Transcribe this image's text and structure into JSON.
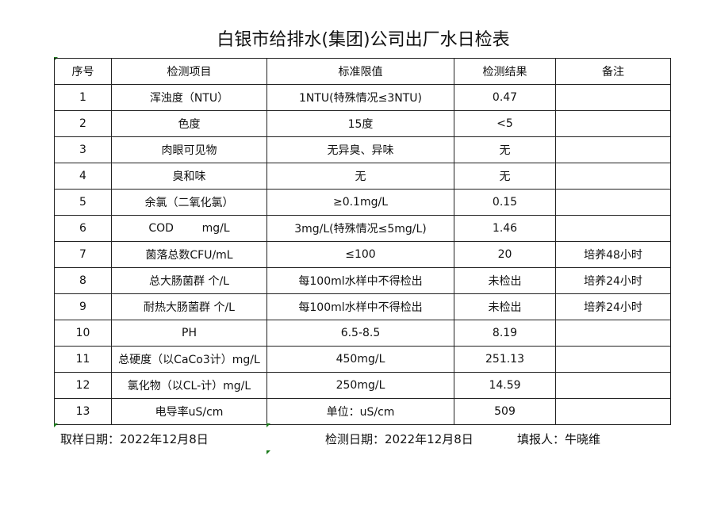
{
  "title": "白银市给排水(集团)公司出厂水日检表",
  "headers": [
    "序号",
    "检测项目",
    "标准限值",
    "检测结果",
    "备注"
  ],
  "rows": [
    [
      "1",
      "浑浊度（NTU）",
      "1NTU(特殊情况≤3NTU)",
      "0.47",
      ""
    ],
    [
      "2",
      "色度",
      "15度",
      "<5",
      ""
    ],
    [
      "3",
      "肉眼可见物",
      "无异臭、异味",
      "无",
      ""
    ],
    [
      "4",
      "臭和味",
      "无",
      "无",
      ""
    ],
    [
      "5",
      "余氯（二氧化氯）",
      "≥0.1mg/L",
      "0.15",
      ""
    ],
    [
      "6",
      "COD        mg/L",
      "3mg/L(特殊情况≤5mg/L)",
      "1.46",
      ""
    ],
    [
      "7",
      "菌落总数CFU/mL",
      "≤100",
      "20",
      "培养48小时"
    ],
    [
      "8",
      "总大肠菌群 个/L",
      "每100ml水样中不得检出",
      "未检出",
      "培养24小时"
    ],
    [
      "9",
      "耐热大肠菌群 个/L",
      "每100ml水样中不得检出",
      "未检出",
      "培养24小时"
    ],
    [
      "10",
      "PH",
      "6.5-8.5",
      "8.19",
      ""
    ],
    [
      "11",
      "总硬度（以CaCo3计）mg/L",
      "450mg/L",
      "251.13",
      ""
    ],
    [
      "12",
      "氯化物（以CL-计）mg/L",
      "250mg/L",
      "14.59",
      ""
    ],
    [
      "13",
      "电导率uS/cm",
      "单位：uS/cm",
      "509",
      ""
    ]
  ],
  "footer": {
    "sampling_date": "取样日期：2022年12月8日",
    "test_date": "检测日期：2022年12月8日",
    "reporter": "填报人：牛晓维"
  }
}
